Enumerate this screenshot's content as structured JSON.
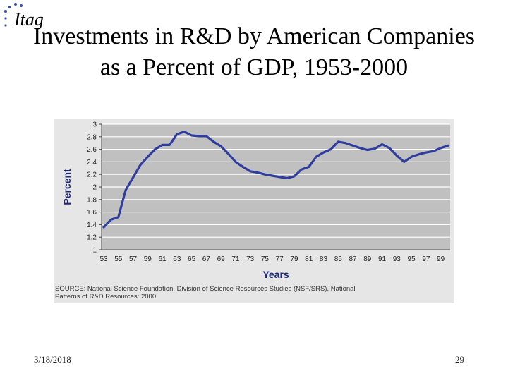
{
  "slide": {
    "title_line1": "Investments in R&D by American Companies",
    "title_line2": "as a Percent of GDP, 1953-2000",
    "source_line1": "SOURCE: National Science Foundation, Division of Science Resources Studies (NSF/SRS), National",
    "source_line2": "Patterns of R&D Resources: 2000",
    "footer_date": "3/18/2018",
    "footer_page": "29",
    "logo_text": "Itag"
  },
  "chart_data": {
    "type": "line",
    "title": "",
    "xlabel": "Years",
    "ylabel": "Percent",
    "ylim": [
      1,
      3
    ],
    "yticks": [
      1,
      1.2,
      1.4,
      1.6,
      1.8,
      2,
      2.2,
      2.4,
      2.6,
      2.8,
      3
    ],
    "ytick_labels": [
      "1",
      "1.2",
      "1.4",
      "1.6",
      "1.8",
      "2",
      "2.2",
      "2.4",
      "2.6",
      "2.8",
      "3"
    ],
    "xlim": [
      1953,
      2000
    ],
    "xtick_labels": [
      "53",
      "55",
      "57",
      "59",
      "61",
      "63",
      "65",
      "67",
      "69",
      "71",
      "73",
      "75",
      "77",
      "79",
      "81",
      "83",
      "85",
      "87",
      "89",
      "91",
      "93",
      "95",
      "97",
      "99"
    ],
    "grid": true,
    "line_color": "#2e3d9e",
    "plot_bg": "#c0c0c0",
    "grid_color": "#ffffff",
    "x": [
      1953,
      1954,
      1955,
      1956,
      1957,
      1958,
      1959,
      1960,
      1961,
      1962,
      1963,
      1964,
      1965,
      1966,
      1967,
      1968,
      1969,
      1970,
      1971,
      1972,
      1973,
      1974,
      1975,
      1976,
      1977,
      1978,
      1979,
      1980,
      1981,
      1982,
      1983,
      1984,
      1985,
      1986,
      1987,
      1988,
      1989,
      1990,
      1991,
      1992,
      1993,
      1994,
      1995,
      1996,
      1997,
      1998,
      1999,
      2000
    ],
    "y": [
      1.36,
      1.48,
      1.52,
      1.95,
      2.15,
      2.35,
      2.48,
      2.6,
      2.67,
      2.67,
      2.84,
      2.88,
      2.82,
      2.81,
      2.81,
      2.72,
      2.65,
      2.53,
      2.4,
      2.32,
      2.25,
      2.23,
      2.2,
      2.18,
      2.16,
      2.14,
      2.17,
      2.28,
      2.32,
      2.48,
      2.55,
      2.6,
      2.72,
      2.7,
      2.66,
      2.62,
      2.59,
      2.61,
      2.68,
      2.62,
      2.5,
      2.4,
      2.48,
      2.52,
      2.55,
      2.57,
      2.62,
      2.66
    ]
  }
}
